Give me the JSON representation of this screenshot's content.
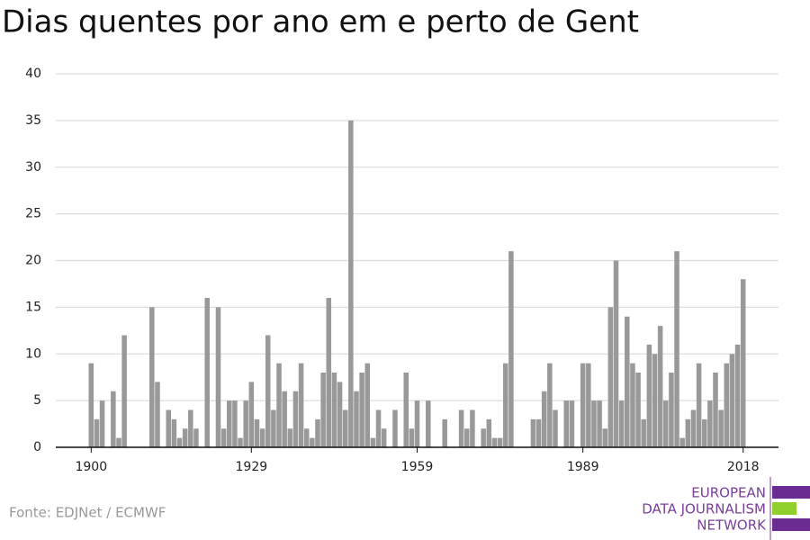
{
  "chart_data": {
    "type": "bar",
    "title": "Dias quentes por ano em e perto de Gent",
    "source": "Fonte: EDJNet / ECMWF",
    "logo": [
      "EUROPEAN",
      "DATA JOURNALISM",
      "NETWORK"
    ],
    "x": [
      1900,
      1901,
      1902,
      1903,
      1904,
      1905,
      1906,
      1907,
      1908,
      1909,
      1910,
      1911,
      1912,
      1913,
      1914,
      1915,
      1916,
      1917,
      1918,
      1919,
      1920,
      1921,
      1922,
      1923,
      1924,
      1925,
      1926,
      1927,
      1928,
      1929,
      1930,
      1931,
      1932,
      1933,
      1934,
      1935,
      1936,
      1937,
      1938,
      1939,
      1940,
      1941,
      1942,
      1943,
      1944,
      1945,
      1946,
      1947,
      1948,
      1949,
      1950,
      1951,
      1952,
      1953,
      1954,
      1955,
      1956,
      1957,
      1958,
      1959,
      1960,
      1961,
      1962,
      1963,
      1964,
      1965,
      1966,
      1967,
      1968,
      1969,
      1970,
      1971,
      1972,
      1973,
      1974,
      1975,
      1976,
      1977,
      1978,
      1979,
      1980,
      1981,
      1982,
      1983,
      1984,
      1985,
      1986,
      1987,
      1988,
      1989,
      1990,
      1991,
      1992,
      1993,
      1994,
      1995,
      1996,
      1997,
      1998,
      1999,
      2000,
      2001,
      2002,
      2003,
      2004,
      2005,
      2006,
      2007,
      2008,
      2009,
      2010,
      2011,
      2012,
      2013,
      2014,
      2015,
      2016,
      2017,
      2018
    ],
    "values": [
      9,
      3,
      5,
      0,
      6,
      1,
      12,
      0,
      0,
      0,
      0,
      15,
      7,
      0,
      4,
      3,
      1,
      2,
      4,
      2,
      0,
      16,
      0,
      15,
      2,
      5,
      5,
      1,
      5,
      7,
      3,
      2,
      12,
      4,
      9,
      6,
      2,
      6,
      9,
      2,
      1,
      3,
      8,
      16,
      8,
      7,
      4,
      35,
      6,
      8,
      9,
      1,
      4,
      2,
      0,
      4,
      0,
      8,
      2,
      5,
      0,
      5,
      0,
      0,
      3,
      0,
      0,
      4,
      2,
      4,
      0,
      2,
      3,
      1,
      1,
      9,
      21,
      0,
      0,
      0,
      3,
      3,
      6,
      9,
      4,
      0,
      5,
      5,
      0,
      9,
      9,
      5,
      5,
      2,
      15,
      20,
      5,
      14,
      9,
      8,
      3,
      11,
      10,
      13,
      5,
      8,
      21,
      1,
      3,
      4,
      9,
      3,
      5,
      8,
      4,
      9,
      10,
      11,
      18
    ],
    "color": "#999999",
    "xlim": [
      1893.6,
      2024.4
    ],
    "xticks": [
      1900,
      1929,
      1959,
      1989,
      2018
    ],
    "ylim": [
      0,
      40
    ],
    "yticks": [
      0,
      5,
      10,
      15,
      20,
      25,
      30,
      35,
      40
    ],
    "grid": true
  }
}
